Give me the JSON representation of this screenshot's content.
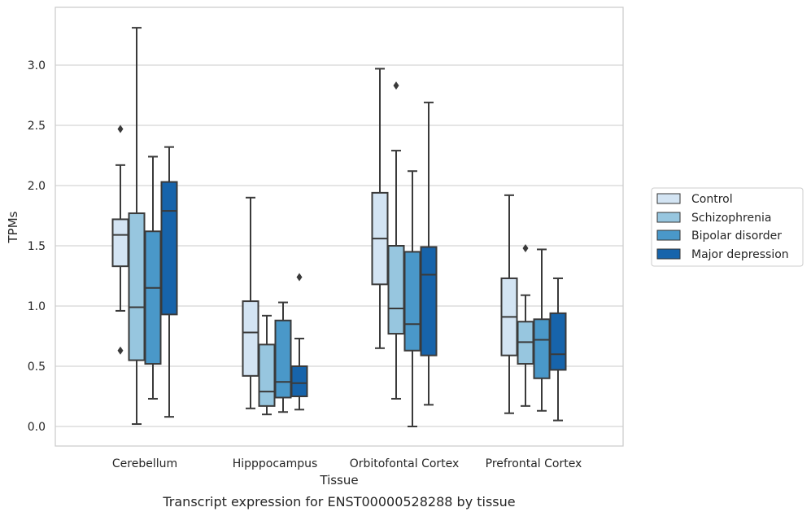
{
  "chart_data": {
    "type": "box",
    "title": "",
    "caption": "Transcript expression for ENST00000528288 by tissue",
    "xlabel": "Tissue",
    "ylabel": "TPMs",
    "ylim": [
      -0.16,
      3.45
    ],
    "yticks": [
      "0.0",
      "0.5",
      "1.0",
      "1.5",
      "2.0",
      "2.5",
      "3.0"
    ],
    "grid": true,
    "legend_position": "right",
    "categories": [
      "Cerebellum",
      "Hipppocampus",
      "Orbitofontal Cortex",
      "Prefrontal Cortex"
    ],
    "series": [
      {
        "name": "Control",
        "color": "#d3e4f3",
        "boxes": [
          {
            "whisker_low": 0.96,
            "q1": 1.33,
            "median": 1.59,
            "q3": 1.72,
            "whisker_high": 2.17,
            "outliers": [
              2.47,
              0.63
            ]
          },
          {
            "whisker_low": 0.15,
            "q1": 0.42,
            "median": 0.78,
            "q3": 1.04,
            "whisker_high": 1.9,
            "outliers": []
          },
          {
            "whisker_low": 0.65,
            "q1": 1.18,
            "median": 1.56,
            "q3": 1.94,
            "whisker_high": 2.97,
            "outliers": []
          },
          {
            "whisker_low": 0.11,
            "q1": 0.59,
            "median": 0.91,
            "q3": 1.23,
            "whisker_high": 1.92,
            "outliers": []
          }
        ]
      },
      {
        "name": "Schizophrenia",
        "color": "#97c6df",
        "boxes": [
          {
            "whisker_low": 0.02,
            "q1": 0.55,
            "median": 0.99,
            "q3": 1.77,
            "whisker_high": 3.31,
            "outliers": []
          },
          {
            "whisker_low": 0.1,
            "q1": 0.17,
            "median": 0.29,
            "q3": 0.68,
            "whisker_high": 0.92,
            "outliers": []
          },
          {
            "whisker_low": 0.23,
            "q1": 0.77,
            "median": 0.98,
            "q3": 1.5,
            "whisker_high": 2.29,
            "outliers": [
              2.83
            ]
          },
          {
            "whisker_low": 0.17,
            "q1": 0.52,
            "median": 0.7,
            "q3": 0.87,
            "whisker_high": 1.09,
            "outliers": [
              1.48
            ]
          }
        ]
      },
      {
        "name": "Bipolar disorder",
        "color": "#4a98c9",
        "boxes": [
          {
            "whisker_low": 0.23,
            "q1": 0.52,
            "median": 1.15,
            "q3": 1.62,
            "whisker_high": 2.24,
            "outliers": []
          },
          {
            "whisker_low": 0.12,
            "q1": 0.24,
            "median": 0.37,
            "q3": 0.88,
            "whisker_high": 1.03,
            "outliers": []
          },
          {
            "whisker_low": 0.0,
            "q1": 0.63,
            "median": 0.85,
            "q3": 1.45,
            "whisker_high": 2.12,
            "outliers": []
          },
          {
            "whisker_low": 0.13,
            "q1": 0.4,
            "median": 0.72,
            "q3": 0.89,
            "whisker_high": 1.47,
            "outliers": []
          }
        ]
      },
      {
        "name": "Major depression",
        "color": "#1764ab",
        "boxes": [
          {
            "whisker_low": 0.08,
            "q1": 0.93,
            "median": 1.79,
            "q3": 2.03,
            "whisker_high": 2.32,
            "outliers": []
          },
          {
            "whisker_low": 0.14,
            "q1": 0.25,
            "median": 0.36,
            "q3": 0.5,
            "whisker_high": 0.73,
            "outliers": [
              1.24
            ]
          },
          {
            "whisker_low": 0.18,
            "q1": 0.59,
            "median": 1.26,
            "q3": 1.49,
            "whisker_high": 2.69,
            "outliers": []
          },
          {
            "whisker_low": 0.05,
            "q1": 0.47,
            "median": 0.6,
            "q3": 0.94,
            "whisker_high": 1.23,
            "outliers": []
          }
        ]
      }
    ]
  }
}
